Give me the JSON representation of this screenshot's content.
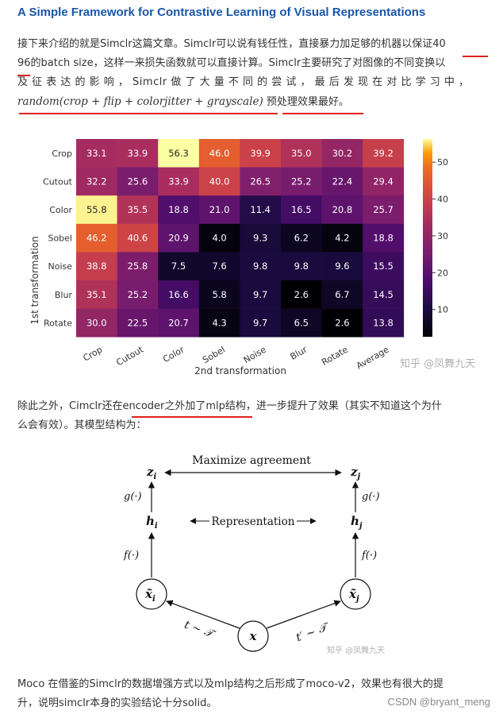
{
  "article": {
    "title": "A Simple Framework for Contrastive Learning of Visual Representations",
    "intro_line1": "接下来介绍的就是Simclr这篇文章。Simclr可以说有钱任性，直接暴力加足够的机器以保证40",
    "intro_line2": "96的batch size，这样一来损失函数就可以直接计算。Simclr主要研究了对图像的不同变换以",
    "intro_line3": "及 征 表 达 的 影 响 ， Simclr 做 了 大 量 不 同 的 尝 试 ， 最 后 发 现 在 对 比 学 习 中 ，",
    "intro_formula": "random(crop + flip + colorjitter + grayscale)",
    "intro_tail": " 预处理效果最好。",
    "mid_line1": "除此之外，Cimclr还在encoder之外加了mlp结构，进一步提升了效果（其实不知道这个为什",
    "mid_line2": "么会有效）。其模型结构为：",
    "end_line1": "Moco 在借鉴的Simclr的数据增强方式以及mlp结构之后形成了moco-v2，效果也有很大的提",
    "end_line2": "升，说明simclr本身的实验结论十分solid。"
  },
  "watermarks": {
    "heatmap": "知乎 @凤舞九天",
    "diagram": "知乎 @凤舞九天",
    "csdn": "CSDN @bryant_meng"
  },
  "chart_data": {
    "type": "heatmap",
    "xlabel": "2nd transformation",
    "ylabel": "1st transformation",
    "x_categories": [
      "Crop",
      "Cutout",
      "Color",
      "Sobel",
      "Noise",
      "Blur",
      "Rotate",
      "Average"
    ],
    "y_categories": [
      "Crop",
      "Cutout",
      "Color",
      "Sobel",
      "Noise",
      "Blur",
      "Rotate"
    ],
    "values": [
      [
        33.1,
        33.9,
        56.3,
        46.0,
        39.9,
        35.0,
        30.2,
        39.2
      ],
      [
        32.2,
        25.6,
        33.9,
        40.0,
        26.5,
        25.2,
        22.4,
        29.4
      ],
      [
        55.8,
        35.5,
        18.8,
        21.0,
        11.4,
        16.5,
        20.8,
        25.7
      ],
      [
        46.2,
        40.6,
        20.9,
        4.0,
        9.3,
        6.2,
        4.2,
        18.8
      ],
      [
        38.8,
        25.8,
        7.5,
        7.6,
        9.8,
        9.8,
        9.6,
        15.5
      ],
      [
        35.1,
        25.2,
        16.6,
        5.8,
        9.7,
        2.6,
        6.7,
        14.5
      ],
      [
        30.0,
        22.5,
        20.7,
        4.3,
        9.7,
        6.5,
        2.6,
        13.8
      ]
    ],
    "colorbar_ticks": [
      "10",
      "20",
      "30",
      "40",
      "50"
    ],
    "colorbar_range": [
      2.6,
      56.3
    ],
    "colormap": "inferno"
  },
  "diagram": {
    "top_label": "Maximize agreement",
    "mid_label": "Representation",
    "z_i": "z",
    "z_j": "z",
    "h_i": "h",
    "h_j": "h",
    "g_left": "g(·)",
    "g_right": "g(·)",
    "f_left": "f(·)",
    "f_right": "f(·)",
    "x_tilde_i": "x̃",
    "x_tilde_j": "x̃",
    "x": "x",
    "t_left": "t ∼ 𝒯",
    "t_right": "t′ ∼ 𝒯",
    "sub_i": "i",
    "sub_j": "j"
  }
}
